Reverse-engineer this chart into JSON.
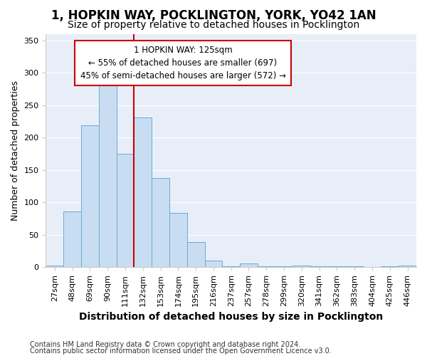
{
  "title": "1, HOPKIN WAY, POCKLINGTON, YORK, YO42 1AN",
  "subtitle": "Size of property relative to detached houses in Pocklington",
  "xlabel": "Distribution of detached houses by size in Pocklington",
  "ylabel": "Number of detached properties",
  "footnote1": "Contains HM Land Registry data © Crown copyright and database right 2024.",
  "footnote2": "Contains public sector information licensed under the Open Government Licence v3.0.",
  "bar_labels": [
    "27sqm",
    "48sqm",
    "69sqm",
    "90sqm",
    "111sqm",
    "132sqm",
    "153sqm",
    "174sqm",
    "195sqm",
    "216sqm",
    "237sqm",
    "257sqm",
    "278sqm",
    "299sqm",
    "320sqm",
    "341sqm",
    "362sqm",
    "383sqm",
    "404sqm",
    "425sqm",
    "446sqm"
  ],
  "bar_values": [
    2,
    86,
    219,
    283,
    175,
    231,
    138,
    84,
    39,
    10,
    1,
    6,
    1,
    1,
    2,
    1,
    1,
    1,
    0,
    1,
    2
  ],
  "bar_color": "#c9ddf2",
  "bar_edge_color": "#6aaad4",
  "vline_x": 4.5,
  "vline_color": "#cc0000",
  "ylim": [
    0,
    360
  ],
  "yticks": [
    0,
    50,
    100,
    150,
    200,
    250,
    300,
    350
  ],
  "annotation_text": "1 HOPKIN WAY: 125sqm\n← 55% of detached houses are smaller (697)\n45% of semi-detached houses are larger (572) →",
  "annotation_box_facecolor": "#ffffff",
  "annotation_box_edgecolor": "#cc0000",
  "bg_color": "#ffffff",
  "plot_bg_color": "#e8eef8",
  "grid_color": "#ffffff",
  "title_fontsize": 12,
  "subtitle_fontsize": 10,
  "tick_fontsize": 8,
  "ylabel_fontsize": 9,
  "xlabel_fontsize": 10,
  "annotation_fontsize": 8.5,
  "footnote_fontsize": 7
}
